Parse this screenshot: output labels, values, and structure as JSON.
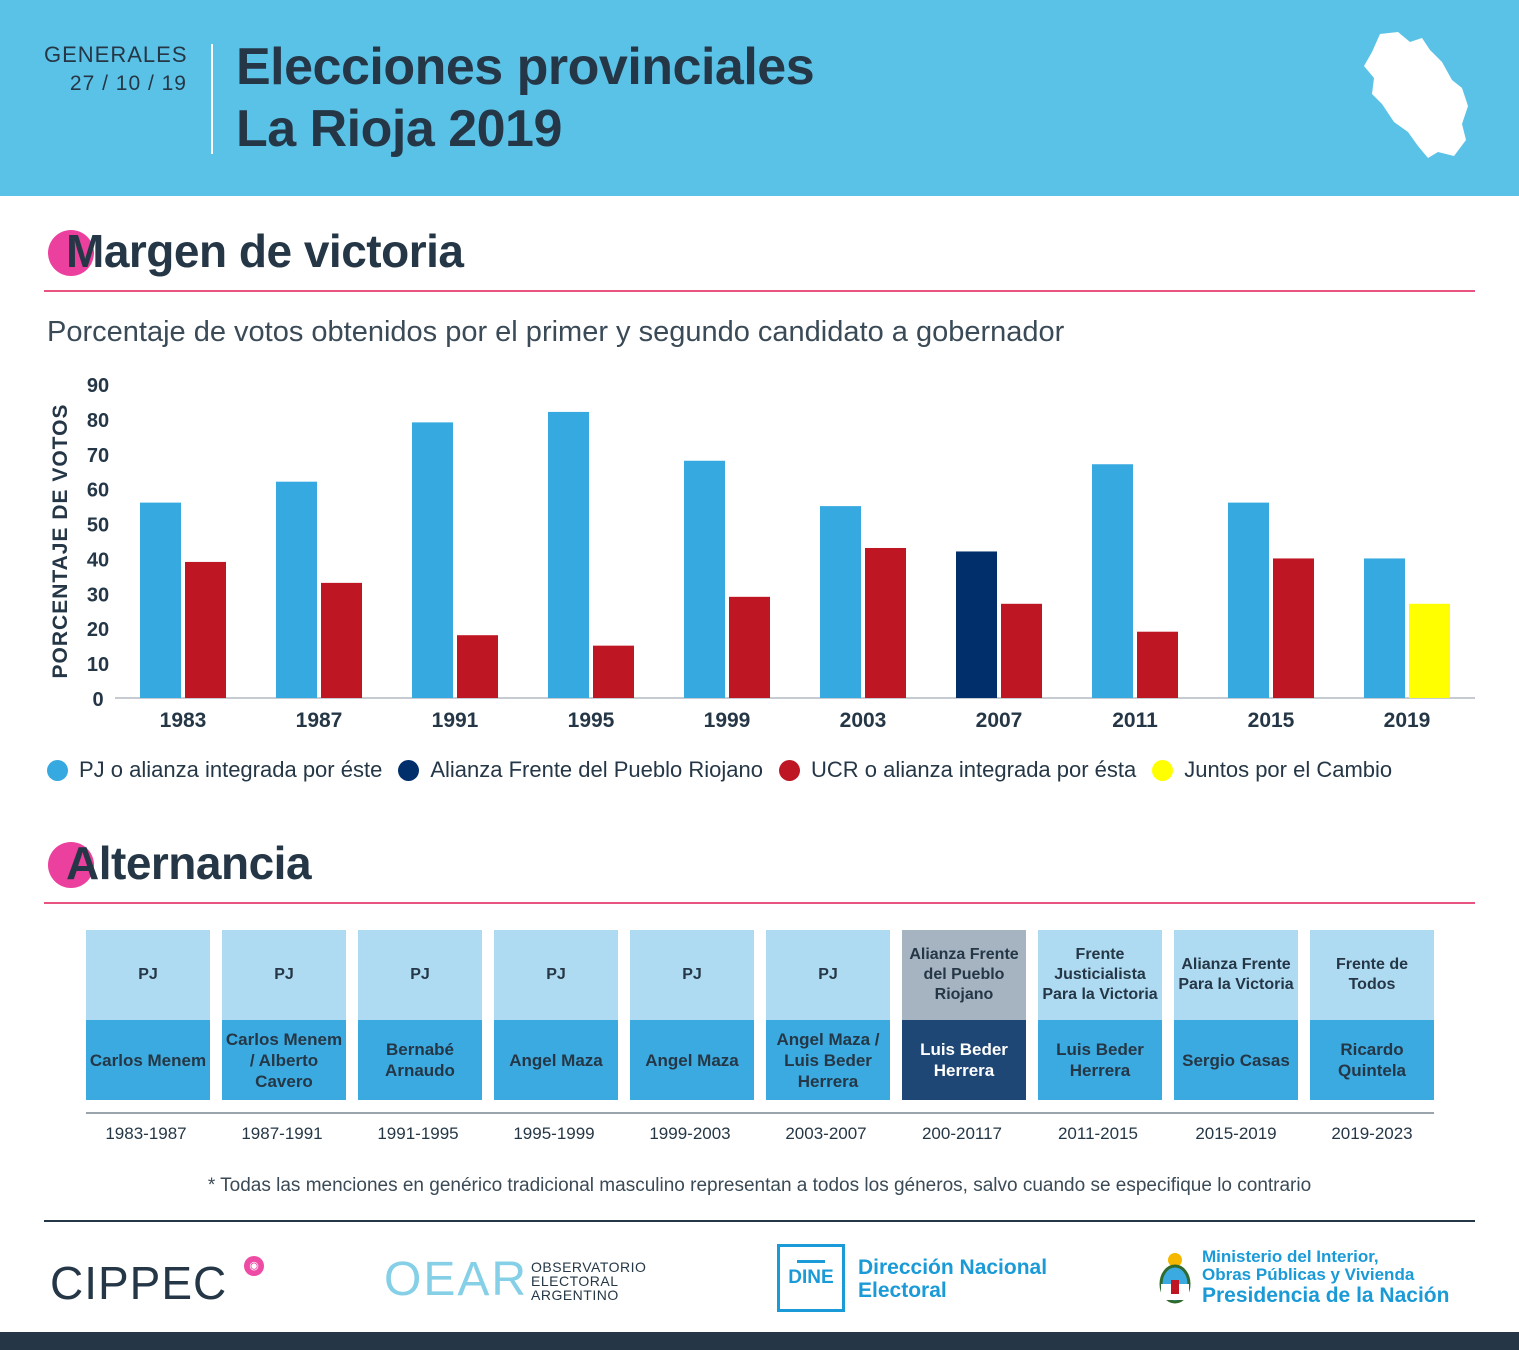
{
  "header": {
    "generales": "GENERALES",
    "fecha": "27 / 10 / 19",
    "title_line1": "Elecciones provinciales",
    "title_line2": "La Rioja 2019"
  },
  "sections": {
    "margen": "Margen de victoria",
    "alternancia": "Alternancia"
  },
  "colors": {
    "pj": "#36a9e1",
    "frente": "#002f6c",
    "ucr": "#be1622",
    "juntos": "#ffff00"
  },
  "chart_data": {
    "type": "bar",
    "title": "Porcentaje de votos obtenidos por el primer y segundo candidato a gobernador",
    "ylabel": "PORCENTAJE DE VOTOS",
    "xlabel": "",
    "ylim": [
      0,
      90
    ],
    "yticks": [
      0,
      10,
      20,
      30,
      40,
      50,
      60,
      70,
      80,
      90
    ],
    "categories": [
      "1983",
      "1987",
      "1991",
      "1995",
      "1999",
      "2003",
      "2007",
      "2011",
      "2015",
      "2019"
    ],
    "series": [
      {
        "name": "Primer candidato",
        "values": [
          56,
          62,
          79,
          82,
          68,
          55,
          42,
          67,
          56,
          40
        ],
        "colors": [
          "pj",
          "pj",
          "pj",
          "pj",
          "pj",
          "pj",
          "frente",
          "pj",
          "pj",
          "pj"
        ]
      },
      {
        "name": "Segundo candidato",
        "values": [
          39,
          33,
          18,
          15,
          29,
          43,
          27,
          19,
          40,
          27
        ],
        "colors": [
          "ucr",
          "ucr",
          "ucr",
          "ucr",
          "ucr",
          "ucr",
          "ucr",
          "ucr",
          "ucr",
          "juntos"
        ]
      }
    ],
    "legend": [
      {
        "label": "PJ o alianza integrada por éste",
        "color": "pj"
      },
      {
        "label": "Alianza Frente del Pueblo Riojano",
        "color": "frente"
      },
      {
        "label": "UCR o alianza integrada por ésta",
        "color": "ucr"
      },
      {
        "label": "Juntos por el Cambio",
        "color": "juntos"
      }
    ]
  },
  "alternancia": [
    {
      "party": "PJ",
      "person": "Carlos Menem",
      "period": "1983-1987"
    },
    {
      "party": "PJ",
      "person": "Carlos Menem / Alberto Cavero",
      "period": "1987-1991"
    },
    {
      "party": "PJ",
      "person": "Bernabé Arnaudo",
      "period": "1991-1995"
    },
    {
      "party": "PJ",
      "person": "Angel Maza",
      "period": "1995-1999"
    },
    {
      "party": "PJ",
      "person": "Angel Maza",
      "period": "1999-2003"
    },
    {
      "party": "PJ",
      "person": "Angel Maza / Luis Beder Herrera",
      "period": "2003-2007"
    },
    {
      "party": "Alianza Frente del Pueblo Riojano",
      "person": "Luis Beder Herrera",
      "period": "200-20117"
    },
    {
      "party": "Frente Justicialista Para la Victoria",
      "person": "Luis Beder Herrera",
      "period": "2011-2015"
    },
    {
      "party": "Alianza Frente Para la Victoria",
      "person": "Sergio Casas",
      "period": "2015-2019"
    },
    {
      "party": "Frente de Todos",
      "person": "Ricardo Quintela",
      "period": "2019-2023"
    }
  ],
  "note": "* Todas las menciones en genérico tradicional masculino representan a todos los géneros, salvo cuando se especifique lo contrario",
  "footer": {
    "cippec": "CIPPEC",
    "oear": "OEAR",
    "oear_sub1": "OBSERVATORIO",
    "oear_sub2": "ELECTORAL",
    "oear_sub3": "ARGENTINO",
    "dine_box": "DINE",
    "dine_line1": "Dirección Nacional",
    "dine_line2": "Electoral",
    "min_line1": "Ministerio del Interior,",
    "min_line2": "Obras Públicas y Vivienda",
    "min_line3": "Presidencia de la Nación"
  }
}
